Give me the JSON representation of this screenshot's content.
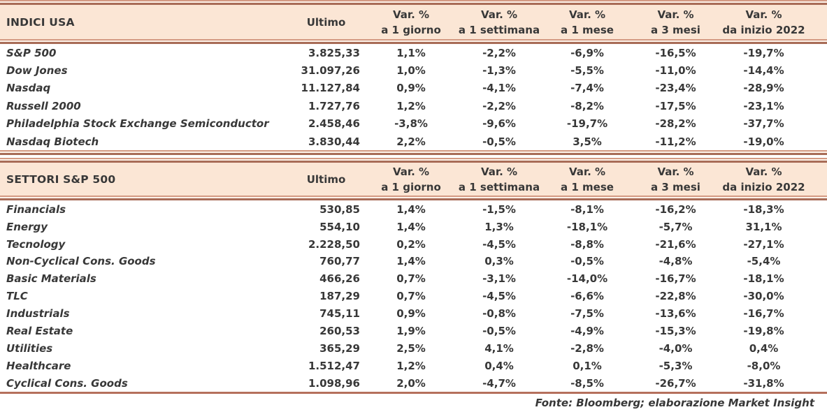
{
  "chart_data": [
    {
      "type": "table",
      "section_title": "INDICI USA",
      "ultimo_label": "Ultimo",
      "var_headers": [
        {
          "top": "Var. %",
          "bottom": "a 1 giorno"
        },
        {
          "top": "Var. %",
          "bottom": "a 1 settimana"
        },
        {
          "top": "Var. %",
          "bottom": "a 1 mese"
        },
        {
          "top": "Var. %",
          "bottom": "a 3 mesi"
        },
        {
          "top": "Var. %",
          "bottom": "da inizio 2022"
        }
      ],
      "rows": [
        {
          "name": "S&P 500",
          "ultimo": "3.825,33",
          "vars": [
            "1,1%",
            "-2,2%",
            "-6,9%",
            "-16,5%",
            "-19,7%"
          ]
        },
        {
          "name": "Dow Jones",
          "ultimo": "31.097,26",
          "vars": [
            "1,0%",
            "-1,3%",
            "-5,5%",
            "-11,0%",
            "-14,4%"
          ]
        },
        {
          "name": "Nasdaq",
          "ultimo": "11.127,84",
          "vars": [
            "0,9%",
            "-4,1%",
            "-7,4%",
            "-23,4%",
            "-28,9%"
          ]
        },
        {
          "name": "Russell 2000",
          "ultimo": "1.727,76",
          "vars": [
            "1,2%",
            "-2,2%",
            "-8,2%",
            "-17,5%",
            "-23,1%"
          ]
        },
        {
          "name": "Philadelphia Stock Exchange Semiconductor",
          "ultimo": "2.458,46",
          "vars": [
            "-3,8%",
            "-9,6%",
            "-19,7%",
            "-28,2%",
            "-37,7%"
          ]
        },
        {
          "name": "Nasdaq Biotech",
          "ultimo": "3.830,44",
          "vars": [
            "2,2%",
            "-0,5%",
            "3,5%",
            "-11,2%",
            "-19,0%"
          ]
        }
      ]
    },
    {
      "type": "table",
      "section_title": "SETTORI S&P 500",
      "ultimo_label": "Ultimo",
      "var_headers": [
        {
          "top": "Var. %",
          "bottom": "a 1 giorno"
        },
        {
          "top": "Var. %",
          "bottom": "a 1 settimana"
        },
        {
          "top": "Var. %",
          "bottom": "a 1 mese"
        },
        {
          "top": "Var. %",
          "bottom": "a 3 mesi"
        },
        {
          "top": "Var. %",
          "bottom": "da inizio 2022"
        }
      ],
      "rows": [
        {
          "name": "Financials",
          "ultimo": "530,85",
          "vars": [
            "1,4%",
            "-1,5%",
            "-8,1%",
            "-16,2%",
            "-18,3%"
          ]
        },
        {
          "name": "Energy",
          "ultimo": "554,10",
          "vars": [
            "1,4%",
            "1,3%",
            "-18,1%",
            "-5,7%",
            "31,1%"
          ]
        },
        {
          "name": "Tecnology",
          "ultimo": "2.228,50",
          "vars": [
            "0,2%",
            "-4,5%",
            "-8,8%",
            "-21,6%",
            "-27,1%"
          ]
        },
        {
          "name": "Non-Cyclical Cons. Goods",
          "ultimo": "760,77",
          "vars": [
            "1,4%",
            "0,3%",
            "-0,5%",
            "-4,8%",
            "-5,4%"
          ]
        },
        {
          "name": "Basic Materials",
          "ultimo": "466,26",
          "vars": [
            "0,7%",
            "-3,1%",
            "-14,0%",
            "-16,7%",
            "-18,1%"
          ]
        },
        {
          "name": "TLC",
          "ultimo": "187,29",
          "vars": [
            "0,7%",
            "-4,5%",
            "-6,6%",
            "-22,8%",
            "-30,0%"
          ]
        },
        {
          "name": "Industrials",
          "ultimo": "745,11",
          "vars": [
            "0,9%",
            "-0,8%",
            "-7,5%",
            "-13,6%",
            "-16,7%"
          ]
        },
        {
          "name": "Real Estate",
          "ultimo": "260,53",
          "vars": [
            "1,9%",
            "-0,5%",
            "-4,9%",
            "-15,3%",
            "-19,8%"
          ]
        },
        {
          "name": "Utilities",
          "ultimo": "365,29",
          "vars": [
            "2,5%",
            "4,1%",
            "-2,8%",
            "-4,0%",
            "0,4%"
          ]
        },
        {
          "name": "Healthcare",
          "ultimo": "1.512,47",
          "vars": [
            "1,2%",
            "0,4%",
            "0,1%",
            "-5,3%",
            "-8,0%"
          ]
        },
        {
          "name": "Cyclical Cons. Goods",
          "ultimo": "1.098,96",
          "vars": [
            "2,0%",
            "-4,7%",
            "-8,5%",
            "-26,7%",
            "-31,8%"
          ]
        }
      ]
    }
  ],
  "footer": {
    "source": "Fonte: Bloomberg; elaborazione Market Insight"
  },
  "colors": {
    "band_bg": "#fbe6d5",
    "rule_light": "#d49a83",
    "rule_dark": "#a86c57",
    "text": "#383838"
  }
}
